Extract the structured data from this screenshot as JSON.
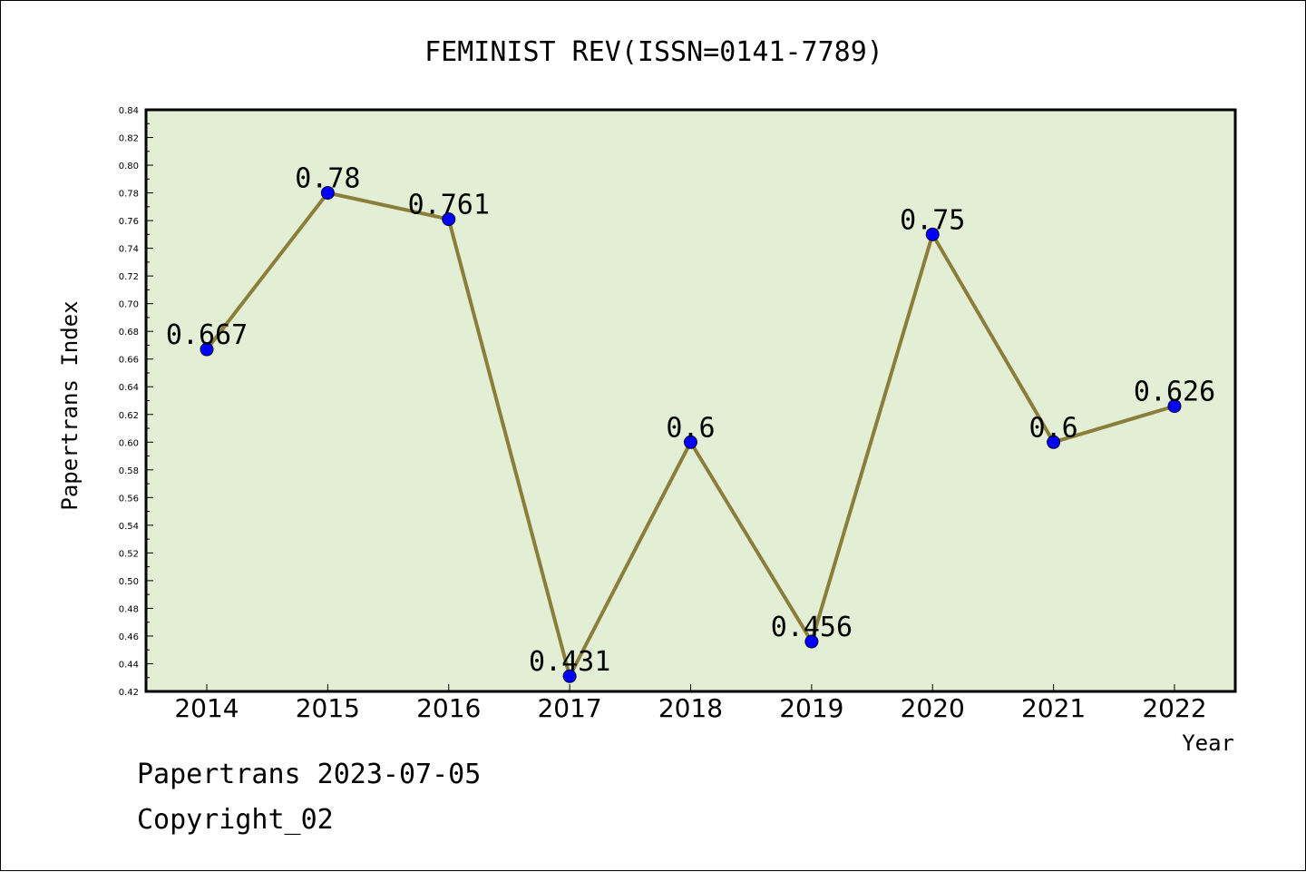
{
  "chart_data": {
    "type": "line",
    "title": "FEMINIST REV(ISSN=0141-7789)",
    "xlabel": "Year",
    "ylabel": "Papertrans Index",
    "categories": [
      "2014",
      "2015",
      "2016",
      "2017",
      "2018",
      "2019",
      "2020",
      "2021",
      "2022"
    ],
    "values": [
      0.667,
      0.78,
      0.761,
      0.431,
      0.6,
      0.456,
      0.75,
      0.6,
      0.626
    ],
    "value_labels": [
      "0.667",
      "0.78",
      "0.761",
      "0.431",
      "0.6",
      "0.456",
      "0.75",
      "0.6",
      "0.626"
    ],
    "ylim": [
      0.42,
      0.84
    ],
    "yticks": [
      "0.42",
      "0.44",
      "0.46",
      "0.48",
      "0.50",
      "0.52",
      "0.54",
      "0.56",
      "0.58",
      "0.60",
      "0.62",
      "0.64",
      "0.66",
      "0.68",
      "0.70",
      "0.72",
      "0.74",
      "0.76",
      "0.78",
      "0.80",
      "0.82",
      "0.84"
    ],
    "grid": false,
    "colors": {
      "plot_background": "#e2efd5",
      "line": "#8b7d3a",
      "marker": "#0000ff"
    }
  },
  "footer": {
    "date_line": "Papertrans 2023-07-05",
    "copyright": "Copyright_02"
  }
}
